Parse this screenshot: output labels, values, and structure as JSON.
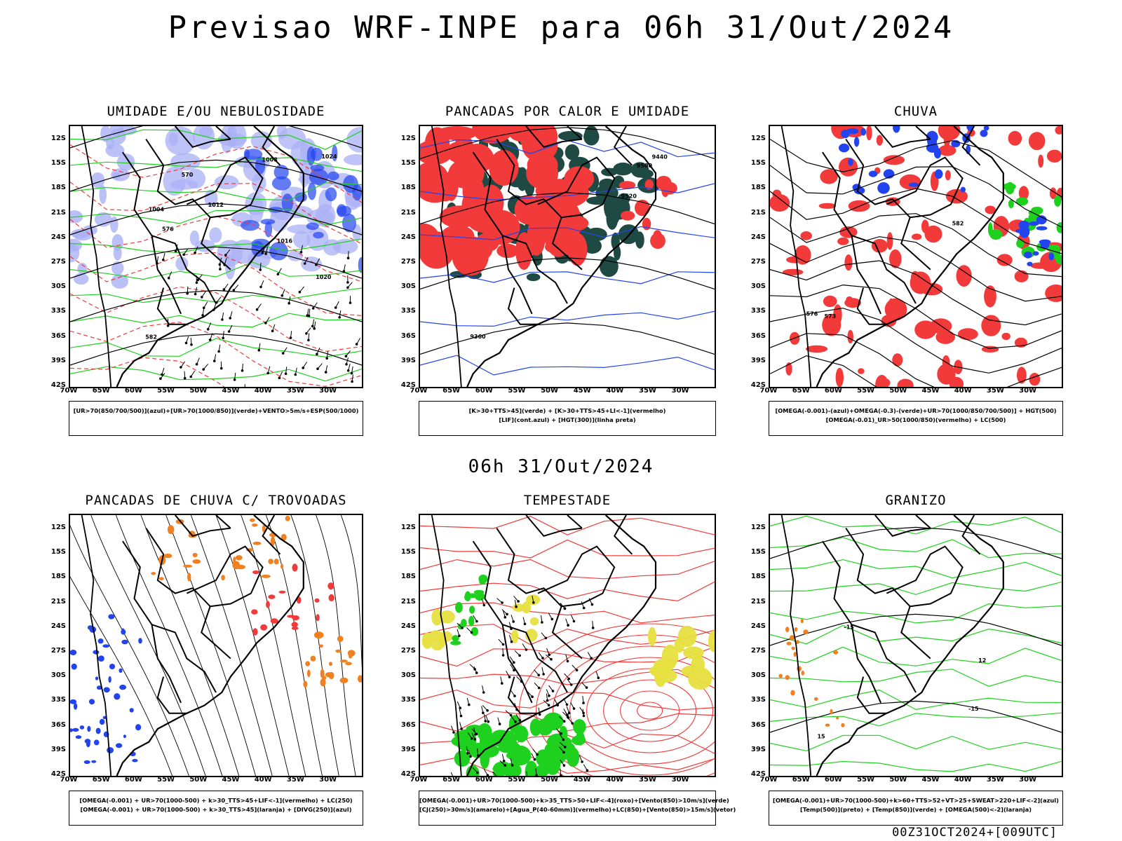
{
  "title": "Previsao WRF-INPE  para 06h 31/Out/2024",
  "mid_time": "06h 31/Out/2024",
  "footer": "00Z31OCT2024+[009UTC]",
  "axes": {
    "y_ticks": [
      "12S",
      "15S",
      "18S",
      "21S",
      "24S",
      "27S",
      "30S",
      "33S",
      "36S",
      "39S",
      "42S"
    ],
    "x_ticks": [
      "70W",
      "65W",
      "60W",
      "55W",
      "50W",
      "45W",
      "40W",
      "35W",
      "30W"
    ]
  },
  "colors": {
    "red": "#f23a3a",
    "green": "#1fd11f",
    "blue": "#2244ee",
    "lightblue": "#aab0f5",
    "darkteal": "#1f4a44",
    "yellow": "#e6e040",
    "orange": "#f08020"
  },
  "panels": [
    {
      "id": "umidade",
      "title": "UMIDADE E/OU NEBULOSIDADE",
      "legend": [
        "[UR>70(850/700/500)](azul)+[UR>70(1000/850)](verde)+VENTO>5m/s+ESP(500/1000)"
      ],
      "labels": [
        "1012",
        "1008",
        "1004",
        "1016",
        "1024",
        "570",
        "576",
        "582",
        "1020"
      ]
    },
    {
      "id": "pancadas-calor",
      "title": "PANCADAS POR CALOR E UMIDADE",
      "legend": [
        "[K>30+TTS>45](verde) + [K>30+TTS>45+LI<-1](vermelho)",
        "[LIF](cont.azul) + [HGT(300)](linha preta)"
      ],
      "labels": [
        "9500",
        "9520",
        "9440",
        "9360"
      ]
    },
    {
      "id": "chuva",
      "title": "CHUVA",
      "legend": [
        "[OMEGA(-0.001)-(azul)+OMEGA(-0.3)-(verde)+UR>70(1000/850/700/500)] + HGT(500)",
        "[OMEGA(-0.01)_UR>50(1000/850)(vermelho) + LC(500)"
      ],
      "labels": [
        "582",
        "576",
        "573"
      ]
    },
    {
      "id": "trovoadas",
      "title": "PANCADAS DE CHUVA C/ TROVOADAS",
      "legend": [
        "[OMEGA(-0.001) + UR>70(1000-500) + k>30_TTS>45+LIF<-1](vermelho) + LC(250)",
        "[OMEGA(-0.001) + UR>70(1000-500) + k>30_TTS>45](laranja) + [DIVG(250)](azul)"
      ],
      "labels": []
    },
    {
      "id": "tempestade",
      "title": "TEMPESTADE",
      "legend": [
        "[OMEGA(-0.001)+UR>70(1000-500)+k>35_TTS>50+LIF<-4](roxo)+[Vento(850)>10m/s](verde)",
        "[CJ(250)>30m/s](amarelo)+[Agua_P(40-60mm)](vermelho)+LC(850)+[Vento(850)>15m/s](vetor)"
      ],
      "labels": []
    },
    {
      "id": "granizo",
      "title": "GRANIZO",
      "legend": [
        "[OMEGA(-0.001)+UR>70(1000-500)+k>60+TTS>52+VT>25+SWEAT>220+LIF<-2](azul)",
        "[Temp(500)](preto) + [Temp(850)](verde) + [OMEGA(500)<-2](laranja)"
      ],
      "labels": [
        "-15",
        "12",
        "-15",
        "15"
      ]
    }
  ]
}
